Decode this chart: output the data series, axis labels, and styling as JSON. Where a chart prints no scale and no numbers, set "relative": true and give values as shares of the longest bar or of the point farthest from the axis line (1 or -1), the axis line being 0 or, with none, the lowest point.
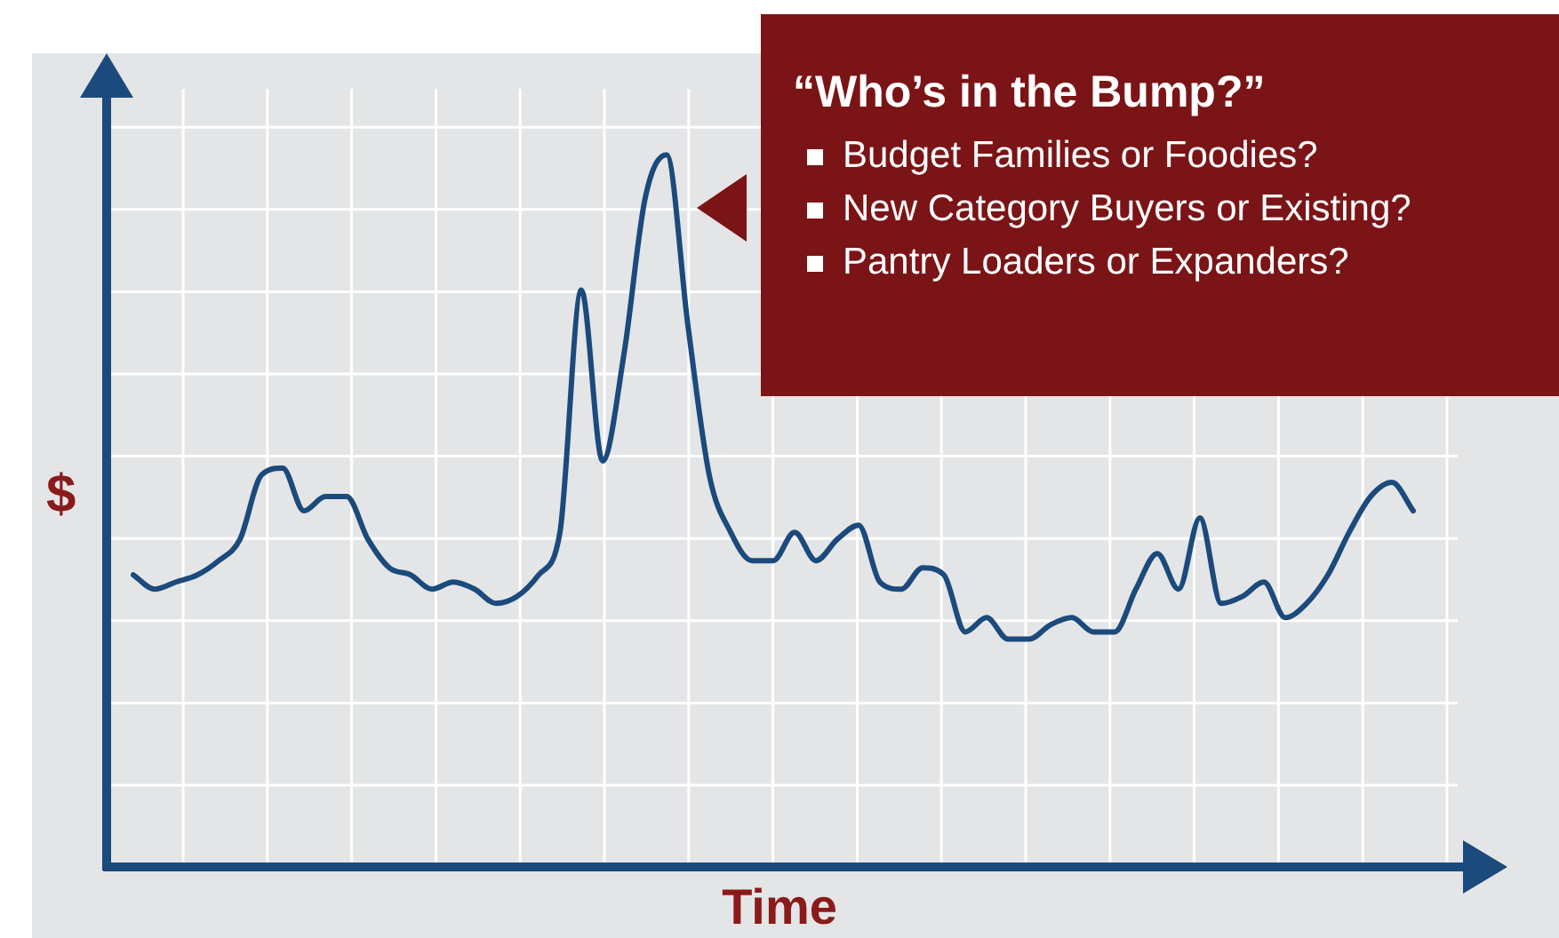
{
  "chart_data": {
    "type": "line",
    "relative": true,
    "xlabel": "Time",
    "ylabel": "$",
    "grid": true,
    "legend": false,
    "marker": "none",
    "line_style": "solid",
    "annotations": [
      "“Who’s in the Bump?”",
      "Budget Families or Foodies?",
      "New Category Buyers or Existing?",
      "Pantry Loaders or Expanders?"
    ],
    "categories": [
      null,
      null,
      null,
      null,
      null,
      null,
      null,
      null,
      null,
      null,
      null,
      null,
      null,
      null,
      null,
      null,
      null,
      null,
      null,
      null,
      null,
      null,
      null,
      null,
      null,
      null,
      null,
      null,
      null,
      null,
      null,
      null,
      null,
      null,
      null,
      null,
      null,
      null,
      null,
      null,
      null,
      null,
      null,
      null,
      null,
      null,
      null,
      null,
      null,
      null,
      null,
      null,
      null,
      null,
      null,
      null,
      null,
      null,
      null,
      null,
      null
    ],
    "series": [
      {
        "color": "#1b4a7c",
        "values": [
          0.41,
          0.39,
          0.4,
          0.41,
          0.43,
          0.46,
          0.55,
          0.56,
          0.5,
          0.52,
          0.52,
          0.46,
          0.42,
          0.41,
          0.39,
          0.4,
          0.39,
          0.37,
          0.38,
          0.41,
          0.47,
          0.81,
          0.57,
          0.72,
          0.94,
          1.0,
          0.76,
          0.55,
          0.47,
          0.43,
          0.43,
          0.47,
          0.43,
          0.46,
          0.48,
          0.4,
          0.39,
          0.42,
          0.41,
          0.33,
          0.35,
          0.32,
          0.32,
          0.34,
          0.35,
          0.33,
          0.33,
          0.39,
          0.44,
          0.39,
          0.49,
          0.37,
          0.38,
          0.4,
          0.35,
          0.37,
          0.41,
          0.47,
          0.52,
          0.54,
          0.5
        ]
      }
    ]
  }
}
